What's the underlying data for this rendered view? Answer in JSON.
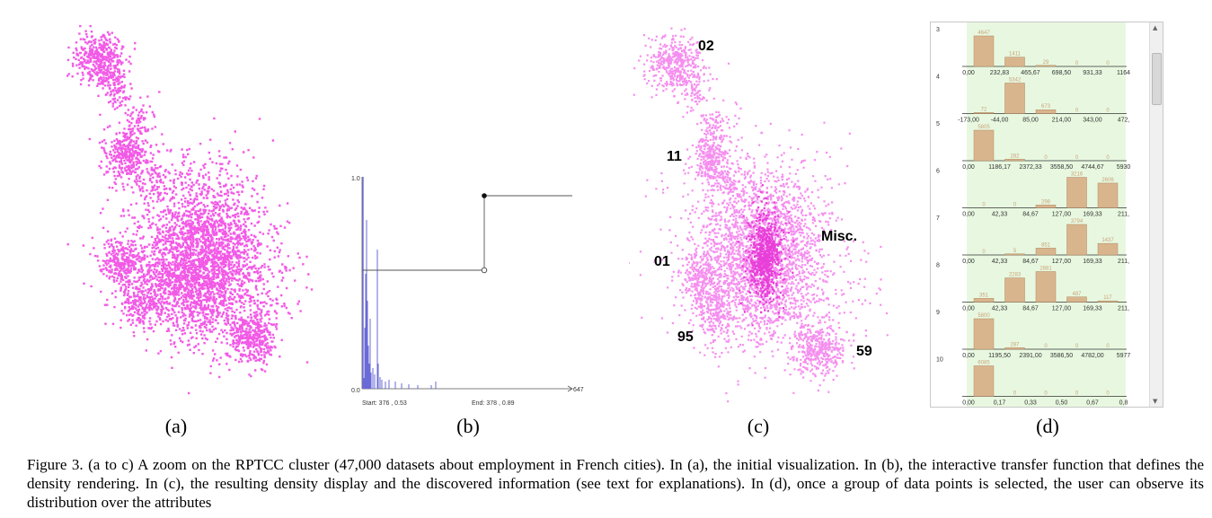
{
  "panels": {
    "a": {
      "label": "(a)"
    },
    "b": {
      "label": "(b)",
      "y_top": "1.0",
      "y_bottom": "0.0",
      "x_max": "647",
      "start_text": "Start: 376 , 0.53",
      "end_text": "End: 378 , 0.89"
    },
    "c": {
      "label": "(c)",
      "cluster_labels": [
        "02",
        "11",
        "Misc.",
        "01",
        "95",
        "59"
      ]
    },
    "d": {
      "label": "(d)",
      "histograms": [
        {
          "id": "3",
          "counts": [
            "4647",
            "1411",
            "29",
            "0",
            "0"
          ],
          "heights": [
            4647,
            1411,
            29,
            0,
            0
          ],
          "ticks": [
            "0,00",
            "232,83",
            "465,67",
            "698,50",
            "931,33",
            "1164"
          ]
        },
        {
          "id": "4",
          "counts": [
            "72",
            "5342",
            "673",
            "0",
            "0"
          ],
          "heights": [
            72,
            5342,
            673,
            0,
            0
          ],
          "ticks": [
            "-173,00",
            "-44,00",
            "85,00",
            "214,00",
            "343,00",
            "472,"
          ]
        },
        {
          "id": "5",
          "counts": [
            "5805",
            "282",
            "0",
            "0",
            "0"
          ],
          "heights": [
            5805,
            282,
            0,
            0,
            0
          ],
          "ticks": [
            "0,00",
            "1186,17",
            "2372,33",
            "3558,50",
            "4744,67",
            "5930"
          ]
        },
        {
          "id": "6",
          "counts": [
            "0",
            "0",
            "298",
            "3216",
            "2606"
          ],
          "heights": [
            0,
            0,
            298,
            3216,
            2606
          ],
          "ticks": [
            "0,00",
            "42,33",
            "84,67",
            "127,00",
            "169,33",
            "211,"
          ]
        },
        {
          "id": "7",
          "counts": [
            "0",
            "5",
            "851",
            "3794",
            "1437"
          ],
          "heights": [
            0,
            5,
            851,
            3794,
            1437
          ],
          "ticks": [
            "0,00",
            "42,33",
            "84,67",
            "127,00",
            "169,33",
            "211,"
          ]
        },
        {
          "id": "8",
          "counts": [
            "351",
            "2283",
            "2881",
            "487",
            "117"
          ],
          "heights": [
            351,
            2283,
            2881,
            487,
            117
          ],
          "ticks": [
            "0,00",
            "42,33",
            "84,67",
            "127,00",
            "169,33",
            "211,"
          ]
        },
        {
          "id": "9",
          "counts": [
            "5800",
            "287",
            "0",
            "0",
            "0"
          ],
          "heights": [
            5800,
            287,
            0,
            0,
            0
          ],
          "ticks": [
            "0,00",
            "1195,50",
            "2391,00",
            "3586,50",
            "4782,00",
            "5977"
          ]
        },
        {
          "id": "10",
          "counts": [
            "6085",
            "0",
            "0",
            "0",
            "0"
          ],
          "heights": [
            6085,
            0,
            0,
            0,
            0
          ],
          "ticks": [
            "0,00",
            "0,17",
            "0,33",
            "0,50",
            "0,67",
            "0,8"
          ]
        }
      ]
    }
  },
  "caption": "Figure 3.    (a to c) A zoom on the RPTCC cluster (47,000 datasets about employment in French cities). In (a), the initial visualization. In (b), the interactive transfer function that defines the density rendering. In (c), the resulting density display and the discovered information (see text for explanations). In (d), once a group of data points is selected, the user can observe its distribution over the attributes",
  "colors": {
    "points": "#f25ae6",
    "dense": "#e83fd9",
    "bar": "#d9b58e",
    "histbg": "#e8f8e0",
    "line": "#6a6ad8"
  }
}
